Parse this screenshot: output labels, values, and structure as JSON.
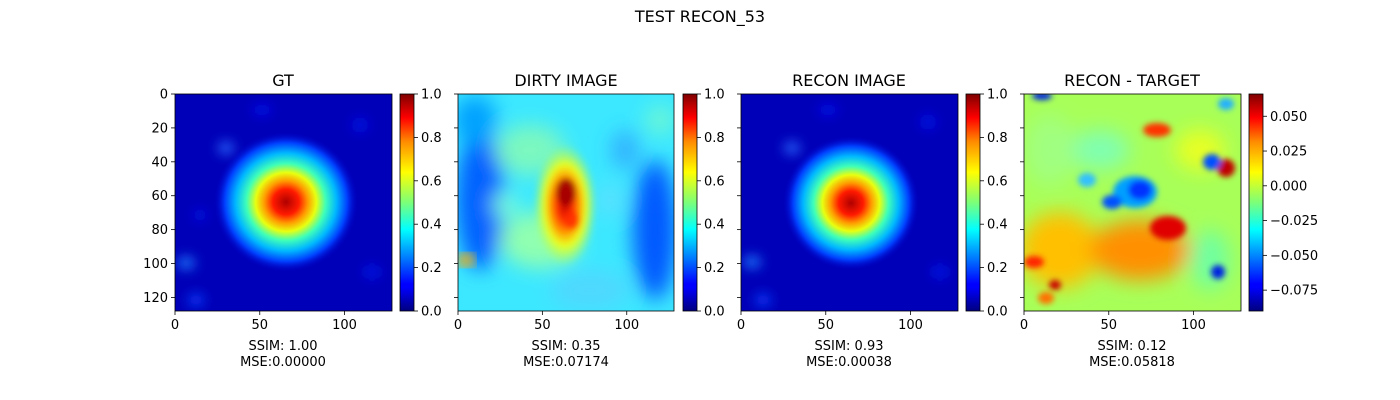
{
  "figure": {
    "suptitle": "TEST RECON_53"
  },
  "colormap": "jet",
  "chart_data": [
    {
      "type": "heatmap",
      "title": "GT",
      "xlim": [
        0,
        128
      ],
      "ylim": [
        128,
        0
      ],
      "xticks": [
        0,
        50,
        100
      ],
      "yticks": [
        0,
        20,
        40,
        60,
        80,
        100,
        120
      ],
      "colorbar": {
        "min": 0.0,
        "max": 1.0,
        "ticks": [
          "0.0",
          "0.2",
          "0.4",
          "0.6",
          "0.8",
          "1.0"
        ],
        "tick_values": [
          0,
          0.2,
          0.4,
          0.6,
          0.8,
          1.0
        ]
      },
      "caption": [
        "SSIM: 1.00",
        "MSE:0.00000"
      ],
      "content": {
        "centroid": [
          65,
          63
        ],
        "peak": 1.0,
        "background": 0.05
      }
    },
    {
      "type": "heatmap",
      "title": "DIRTY IMAGE",
      "xlim": [
        0,
        128
      ],
      "ylim": [
        128,
        0
      ],
      "xticks": [
        0,
        50,
        100
      ],
      "colorbar": {
        "min": 0.0,
        "max": 1.0,
        "ticks": [
          "0.0",
          "0.2",
          "0.4",
          "0.6",
          "0.8",
          "1.0"
        ],
        "tick_values": [
          0,
          0.2,
          0.4,
          0.6,
          0.8,
          1.0
        ]
      },
      "caption": [
        "SSIM: 0.35",
        "MSE:0.07174"
      ],
      "content": {
        "centroid": [
          63,
          60
        ],
        "peak": 0.95,
        "background": 0.45
      }
    },
    {
      "type": "heatmap",
      "title": "RECON IMAGE",
      "xlim": [
        0,
        128
      ],
      "ylim": [
        128,
        0
      ],
      "xticks": [
        0,
        50,
        100
      ],
      "colorbar": {
        "min": 0.0,
        "max": 1.0,
        "ticks": [
          "0.0",
          "0.2",
          "0.4",
          "0.6",
          "0.8",
          "1.0"
        ],
        "tick_values": [
          0,
          0.2,
          0.4,
          0.6,
          0.8,
          1.0
        ]
      },
      "caption": [
        "SSIM: 0.93",
        "MSE:0.00038"
      ],
      "content": {
        "centroid": [
          64,
          63
        ],
        "peak": 0.97,
        "background": 0.05
      }
    },
    {
      "type": "heatmap",
      "title": "RECON - TARGET",
      "xlim": [
        0,
        128
      ],
      "ylim": [
        128,
        0
      ],
      "xticks": [
        0,
        50,
        100
      ],
      "colorbar": {
        "min": -0.09,
        "max": 0.066,
        "ticks": [
          "0.050",
          "0.025",
          "0.000",
          "−0.025",
          "−0.050",
          "−0.075"
        ],
        "tick_values": [
          0.05,
          0.025,
          0.0,
          -0.025,
          -0.05,
          -0.075
        ]
      },
      "caption": [
        "SSIM: 0.12",
        "MSE:0.05818"
      ],
      "content": {
        "background": 0.0
      }
    }
  ]
}
